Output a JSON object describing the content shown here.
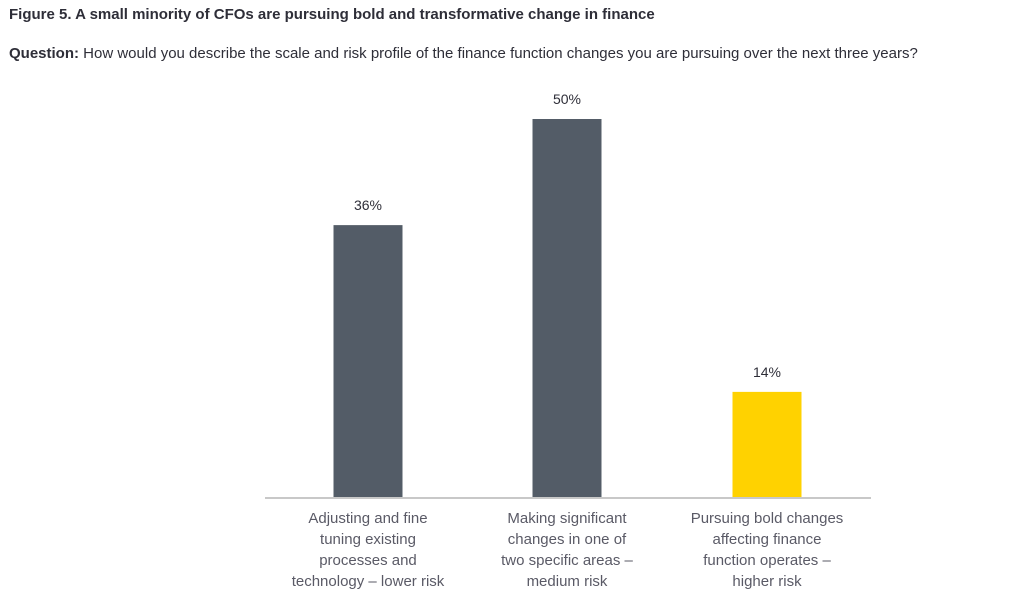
{
  "figure_title": "Figure 5. A small minority of CFOs are pursuing bold and transformative change in finance",
  "question": {
    "label": "Question:",
    "text": "How would you describe the scale and risk profile of the finance function changes you are pursuing over the next three years?"
  },
  "chart_data": {
    "type": "bar",
    "categories": [
      [
        "Adjusting and fine",
        "tuning existing",
        "processes and",
        "technology – lower risk"
      ],
      [
        "Making significant",
        "changes in one of",
        "two specific areas –",
        "medium risk"
      ],
      [
        "Pursuing bold changes",
        "affecting finance",
        "function operates –",
        "higher risk"
      ]
    ],
    "values": [
      36,
      50,
      14
    ],
    "value_labels": [
      "36%",
      "50%",
      "14%"
    ],
    "colors": [
      "#535c67",
      "#535c67",
      "#ffd200"
    ],
    "ylim": [
      0,
      50
    ],
    "grid": false,
    "axis_color": "#c8c8c8"
  }
}
